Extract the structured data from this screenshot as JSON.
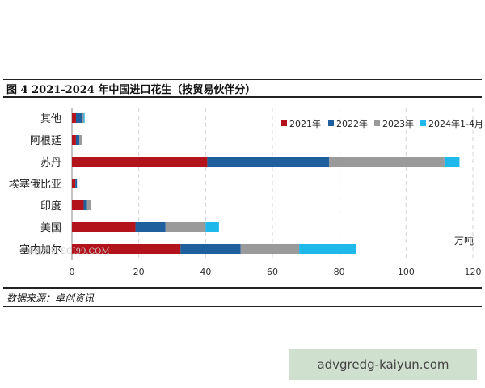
{
  "header": {
    "title": "图 4  2021-2024 年中国进口花生（按贸易伙伴分）"
  },
  "footer": {
    "source": "数据来源：卓创资讯"
  },
  "watermark": {
    "text": "advgredg-kaiyun.com",
    "logo_text": "卓创资讯 SCI99.COM"
  },
  "colors": {
    "2021": "#b3141c",
    "2022": "#1f5f9e",
    "2023": "#9a9a9a",
    "2024": "#1fb8ea"
  },
  "chart_data": {
    "type": "bar",
    "orientation": "horizontal",
    "stacked": true,
    "categories": [
      "其他",
      "阿根廷",
      "苏丹",
      "埃塞俄比亚",
      "印度",
      "美国",
      "塞内加尔"
    ],
    "series": [
      {
        "name": "2021年",
        "values": [
          1.2,
          1.2,
          40.5,
          1.0,
          3.5,
          19.0,
          32.5
        ]
      },
      {
        "name": "2022年",
        "values": [
          1.8,
          1.0,
          36.5,
          0.5,
          1.0,
          9.0,
          18.0
        ]
      },
      {
        "name": "2023年",
        "values": [
          0.5,
          0.8,
          34.5,
          0.0,
          1.2,
          12.0,
          17.5
        ]
      },
      {
        "name": "2024年1-4月",
        "values": [
          0.3,
          0.0,
          4.5,
          0.0,
          0.0,
          4.0,
          17.0
        ]
      }
    ],
    "xlim": [
      0,
      120
    ],
    "xticks": [
      0,
      20,
      40,
      60,
      80,
      100,
      120
    ],
    "unit": "万吨",
    "grid": "vertical dashed",
    "legend_position": "top-right"
  }
}
